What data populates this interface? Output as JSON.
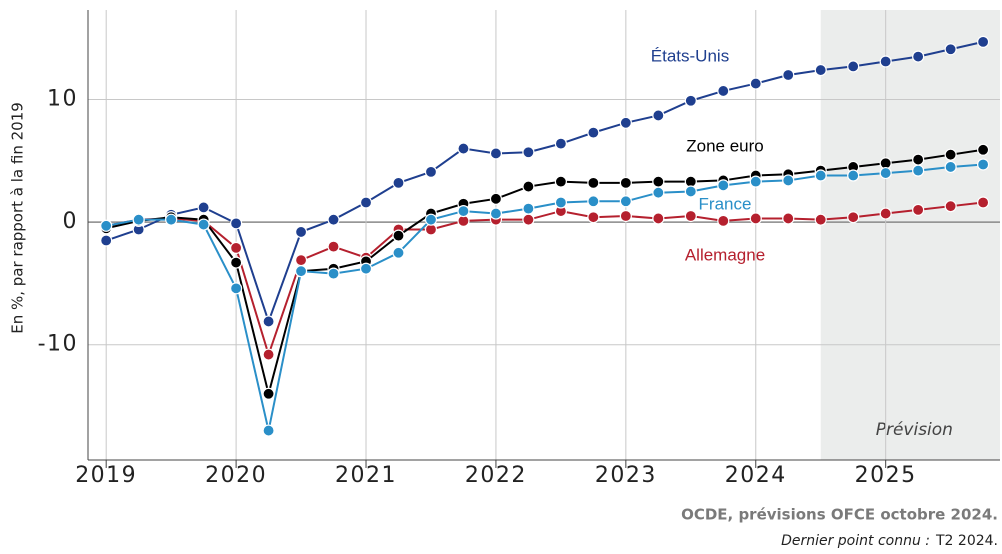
{
  "chart_data": {
    "type": "line",
    "ylabel": "En %, par rapport à la fin 2019",
    "x": [
      2019,
      2019.25,
      2019.5,
      2019.75,
      2020,
      2020.25,
      2020.5,
      2020.75,
      2021,
      2021.25,
      2021.5,
      2021.75,
      2022,
      2022.25,
      2022.5,
      2022.75,
      2023,
      2023.25,
      2023.5,
      2023.75,
      2024,
      2024.25,
      2024.5,
      2024.75,
      2025,
      2025.25,
      2025.5,
      2025.75
    ],
    "xlim": [
      2018.86,
      2025.88
    ],
    "xticks": [
      2019,
      2020,
      2021,
      2022,
      2023,
      2024,
      2025
    ],
    "ylim": [
      -19.4,
      17.3
    ],
    "yticks": [
      -10,
      0,
      10
    ],
    "grid": true,
    "forecast_start": 2024.5,
    "forecast_label": "Prévision",
    "series": [
      {
        "name": "États-Unis",
        "color": "#1f3f8f",
        "values": [
          -1.5,
          -0.6,
          0.6,
          1.2,
          -0.1,
          -8.1,
          -0.8,
          0.2,
          1.6,
          3.2,
          4.1,
          6.0,
          5.6,
          5.7,
          6.4,
          7.3,
          8.1,
          8.7,
          9.9,
          10.7,
          11.3,
          12.0,
          12.4,
          12.7,
          13.1,
          13.5,
          14.1,
          14.7
        ]
      },
      {
        "name": "Allemagne",
        "color": "#b5202e",
        "values": [
          -0.3,
          0.2,
          0.3,
          0.1,
          -2.1,
          -10.8,
          -3.1,
          -2.0,
          -2.9,
          -0.6,
          -0.6,
          0.1,
          0.2,
          0.2,
          0.9,
          0.4,
          0.5,
          0.3,
          0.5,
          0.1,
          0.3,
          0.3,
          0.2,
          0.4,
          0.7,
          1.0,
          1.3,
          1.6
        ]
      },
      {
        "name": "Zone euro",
        "color": "#000000",
        "values": [
          -0.5,
          0.1,
          0.4,
          0.2,
          -3.3,
          -14.0,
          -4.0,
          -3.8,
          -3.2,
          -1.1,
          0.7,
          1.5,
          1.9,
          2.9,
          3.3,
          3.2,
          3.2,
          3.3,
          3.3,
          3.4,
          3.8,
          3.9,
          4.2,
          4.5,
          4.8,
          5.1,
          5.5,
          5.9
        ]
      },
      {
        "name": "France",
        "color": "#2a8fc8",
        "values": [
          -0.3,
          0.2,
          0.2,
          -0.2,
          -5.4,
          -17.0,
          -4.0,
          -4.2,
          -3.8,
          -2.5,
          0.2,
          0.9,
          0.7,
          1.1,
          1.6,
          1.7,
          1.7,
          2.4,
          2.5,
          3.0,
          3.3,
          3.4,
          3.8,
          3.8,
          4.0,
          4.2,
          4.5,
          4.7
        ]
      }
    ],
    "source": "OCDE, prévisions OFCE octobre 2024.",
    "note": "Dernier point connu :",
    "note_value": "T2 2024."
  }
}
